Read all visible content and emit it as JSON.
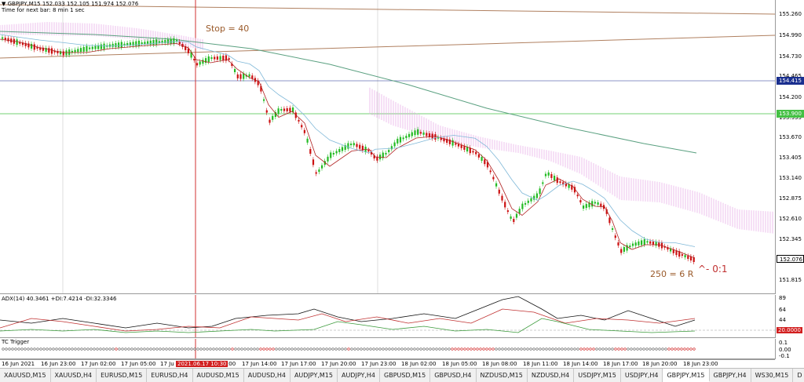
{
  "header": {
    "symbol_line": "▼ GBPJPY,M15  152.033 152.105 151.974 152.076",
    "timer_line": "Time for next bar: 8 min 1 sec"
  },
  "annotations": {
    "stop": "Stop = 40",
    "target": "250 = 6 R",
    "ratio": "^- 0:1"
  },
  "price_axis": {
    "ticks": [
      "155.260",
      "154.990",
      "154.730",
      "154.465",
      "154.200",
      "153.935",
      "153.670",
      "153.405",
      "153.140",
      "152.875",
      "152.610",
      "152.345",
      "152.076",
      "151.815"
    ],
    "boxes": [
      {
        "value": "154.415",
        "bg": "#1a2f8f",
        "fg": "#ffffff"
      },
      {
        "value": "153.900",
        "bg": "#44c044",
        "fg": "#ffffff"
      },
      {
        "value": "152.076",
        "bg": "#ffffff",
        "fg": "#000000"
      }
    ]
  },
  "adx": {
    "label": "ADX(14) 40.3461 +DI:7.4214 -DI:32.3346",
    "ticks": [
      "89",
      "64",
      "44",
      "20.0000"
    ],
    "level_box": "20.0000",
    "colors": {
      "adx": "#111111",
      "plus_di": "#3a9a3a",
      "minus_di": "#c03030",
      "level": "#999999"
    }
  },
  "tc": {
    "label": "TC Trigger",
    "ticks": [
      "0.1",
      "0.00",
      "-0.1"
    ]
  },
  "time_axis": {
    "labels": [
      "16 Jun 2021",
      "16 Jun 23:00",
      "17 Jun 02:00",
      "17 Jun 05:00",
      "17 Ju",
      "11:00",
      "17 Jun 14:00",
      "17 Jun 17:00",
      "17 Jun 20:00",
      "17 Jun 23:00",
      "18 Jun 02:00",
      "18 Jun 05:00",
      "18 Jun 08:00",
      "18 Jun 11:00",
      "18 Jun 14:00",
      "18 Jun 17:00",
      "18 Jun 20:00",
      "18 Jun 23:00"
    ],
    "highlight": "2021.06.17 10:30"
  },
  "tabs": [
    {
      "label": "XAUUSD,M15",
      "active": false
    },
    {
      "label": "XAUUSD,H4",
      "active": false
    },
    {
      "label": "EURUSD,M15",
      "active": false
    },
    {
      "label": "EURUSD,H4",
      "active": false
    },
    {
      "label": "AUDUSD,M15",
      "active": false
    },
    {
      "label": "AUDUSD,H4",
      "active": false
    },
    {
      "label": "AUDJPY,M15",
      "active": false
    },
    {
      "label": "AUDJPY,H4",
      "active": false
    },
    {
      "label": "GBPUSD,M15",
      "active": false
    },
    {
      "label": "GBPUSD,H4",
      "active": false
    },
    {
      "label": "NZDUSD,M15",
      "active": false
    },
    {
      "label": "NZDUSD,H4",
      "active": false
    },
    {
      "label": "USDJPY,M15",
      "active": false
    },
    {
      "label": "USDJPY,H4",
      "active": false
    },
    {
      "label": "GBPJPY,M15",
      "active": true
    },
    {
      "label": "GBPJPY,H4",
      "active": false
    },
    {
      "label": "WS30,M15",
      "active": false
    },
    {
      "label": "D",
      "active": false
    }
  ],
  "colors": {
    "bull": "#22bb22",
    "bear": "#cc1111",
    "cloud": "#e6a8e6",
    "ma_fast": "#b02020",
    "ma_slow": "#7fb8d8",
    "ma_long": "#5aa080",
    "trendline": "#b08060",
    "vline": "#d03030"
  }
}
